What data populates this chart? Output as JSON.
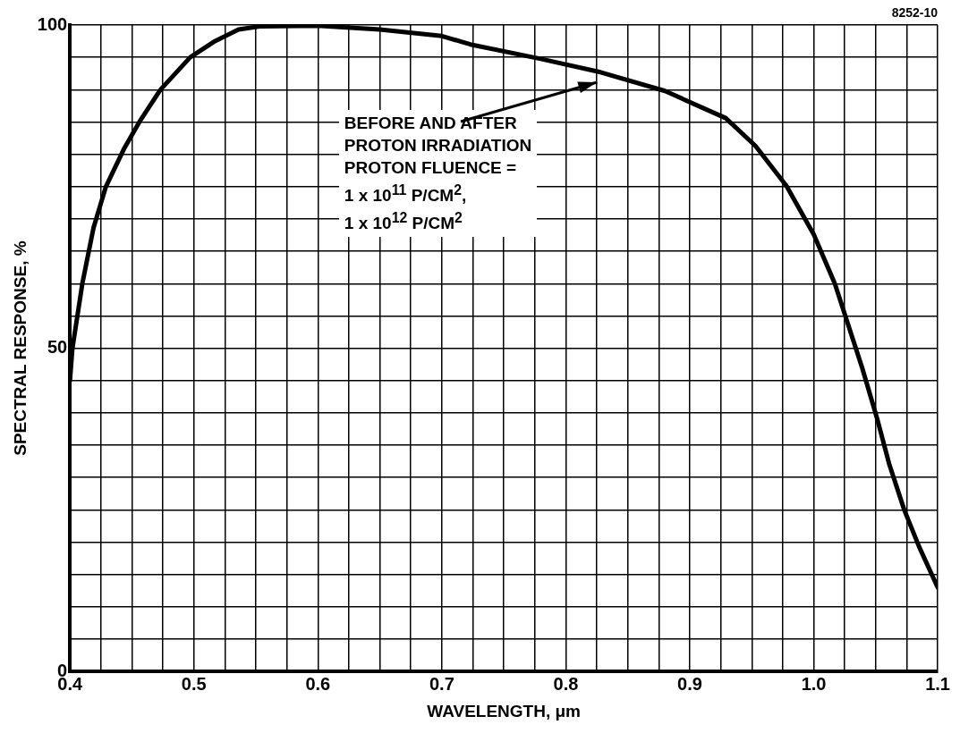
{
  "chart_data": {
    "type": "line",
    "xlabel": "WAVELENGTH, μm",
    "ylabel": "SPECTRAL RESPONSE, %",
    "series": [
      {
        "color": "#000000",
        "x": [
          0.4,
          0.402,
          0.41,
          0.419,
          0.429,
          0.444,
          0.456,
          0.473,
          0.497,
          0.516,
          0.536,
          0.553,
          0.6,
          0.65,
          0.7,
          0.723,
          0.779,
          0.828,
          0.88,
          0.929,
          0.953,
          0.978,
          1.0,
          1.017,
          1.039,
          1.051,
          1.061,
          1.073,
          1.085,
          1.1
        ],
        "values": [
          45,
          50,
          60,
          68.6,
          75,
          81,
          85,
          90,
          95,
          97.4,
          99.3,
          99.8,
          99.9,
          99.3,
          98.3,
          97,
          94.8,
          92.7,
          89.8,
          85.6,
          81.3,
          75.1,
          67.6,
          60,
          47,
          39.2,
          32,
          25,
          19.3,
          13
        ]
      }
    ],
    "xlim": [
      0.4,
      1.1
    ],
    "xticks": [
      0.4,
      {
        "value": 0.425,
        "label": null
      },
      {
        "value": 0.45,
        "label": null
      },
      {
        "value": 0.475,
        "label": null
      },
      0.5,
      {
        "value": 0.525,
        "label": null
      },
      {
        "value": 0.55,
        "label": null
      },
      {
        "value": 0.575,
        "label": null
      },
      0.6,
      {
        "value": 0.625,
        "label": null
      },
      {
        "value": 0.65,
        "label": null
      },
      {
        "value": 0.675,
        "label": null
      },
      0.7,
      {
        "value": 0.725,
        "label": null
      },
      {
        "value": 0.75,
        "label": null
      },
      {
        "value": 0.775,
        "label": null
      },
      0.8,
      {
        "value": 0.825,
        "label": null
      },
      {
        "value": 0.85,
        "label": null
      },
      {
        "value": 0.875,
        "label": null
      },
      0.9,
      {
        "value": 0.925,
        "label": null
      },
      {
        "value": 0.95,
        "label": null
      },
      {
        "value": 0.975,
        "label": null
      },
      {
        "value": 1.0,
        "label": "1.0"
      },
      {
        "value": 1.025,
        "label": null
      },
      {
        "value": 1.05,
        "label": null
      },
      {
        "value": 1.075,
        "label": null
      },
      1.1
    ],
    "ylim": [
      0,
      100
    ],
    "yticks": [
      0,
      {
        "value": 5,
        "label": null
      },
      {
        "value": 10,
        "label": null
      },
      {
        "value": 15,
        "label": null
      },
      {
        "value": 20,
        "label": null
      },
      {
        "value": 25,
        "label": null
      },
      {
        "value": 30,
        "label": null
      },
      {
        "value": 35,
        "label": null
      },
      {
        "value": 40,
        "label": null
      },
      {
        "value": 45,
        "label": null
      },
      50,
      {
        "value": 55,
        "label": null
      },
      {
        "value": 60,
        "label": null
      },
      {
        "value": 65,
        "label": null
      },
      {
        "value": 70,
        "label": null
      },
      {
        "value": 75,
        "label": null
      },
      {
        "value": 80,
        "label": null
      },
      {
        "value": 85,
        "label": null
      },
      {
        "value": 90,
        "label": null
      },
      {
        "value": 95,
        "label": null
      },
      100
    ],
    "grid": true,
    "marker": "none",
    "line_style": "solid",
    "legend": false,
    "annotations": [
      "BEFORE AND AFTER\nPROTON IRRADIATION\nPROTON FLUENCE =\n1 x 10$^{11}$ P/CM$^{2}$,\n1 x 10$^{12}$ P/CM$^{2}$",
      "8252-10"
    ]
  }
}
